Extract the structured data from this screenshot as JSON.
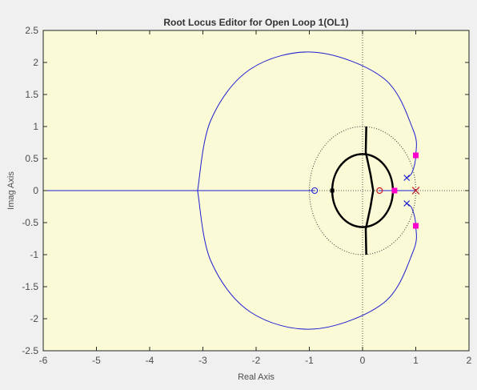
{
  "chart_data": {
    "type": "root-locus",
    "title": "Root Locus Editor for Open Loop 1(OL1)",
    "xlabel": "Real Axis",
    "ylabel": "Imag Axis",
    "xlim": [
      -6,
      2
    ],
    "ylim": [
      -2.5,
      2.5
    ],
    "xticks": [
      -6,
      -5,
      -4,
      -3,
      -2,
      -1,
      0,
      1,
      2
    ],
    "yticks": [
      -2.5,
      -2,
      -1.5,
      -1,
      -0.5,
      0,
      0.5,
      1,
      1.5,
      2,
      2.5
    ],
    "grid": false,
    "background_color": "#fafad7",
    "colors": {
      "locus": "#1f1fd0",
      "poles_zeros": "#1f1fd0",
      "closed_loop_poles": "#ff00cc",
      "compensator": "#d02020",
      "constraint": "#000000"
    },
    "open_loop_poles": [
      [
        0.83,
        0.2
      ],
      [
        0.83,
        -0.2
      ],
      [
        1.0,
        0.0
      ]
    ],
    "open_loop_zeros": [
      [
        -0.9,
        0.0
      ]
    ],
    "closed_loop_poles": [
      [
        1.0,
        0.55
      ],
      [
        1.0,
        -0.55
      ],
      [
        0.6,
        0.0
      ]
    ],
    "compensator_pole": [
      1.0,
      0.0
    ],
    "compensator_zero": [
      0.32,
      0.0
    ],
    "locus_branches": [
      [
        [
          1.0,
          0.0
        ],
        [
          0.3,
          0.0
        ]
      ],
      [
        [
          -6.0,
          0.0
        ],
        [
          -0.9,
          0.0
        ]
      ],
      [
        [
          0.83,
          0.2
        ],
        [
          0.93,
          0.28
        ],
        [
          1.0,
          0.55
        ],
        [
          0.95,
          0.95
        ],
        [
          0.4,
          1.75
        ],
        [
          -0.9,
          2.16
        ],
        [
          -2.1,
          1.9
        ],
        [
          -2.85,
          1.1
        ],
        [
          -3.1,
          0.0
        ]
      ],
      [
        [
          0.83,
          -0.2
        ],
        [
          0.93,
          -0.28
        ],
        [
          1.0,
          -0.55
        ],
        [
          0.95,
          -0.95
        ],
        [
          0.4,
          -1.75
        ],
        [
          -0.9,
          -2.16
        ],
        [
          -2.1,
          -1.9
        ],
        [
          -2.85,
          -1.1
        ],
        [
          -3.1,
          0.0
        ]
      ]
    ],
    "unit_circle_radius": 1.0,
    "design_constraint_ellipse": {
      "center": [
        0.0,
        0.0
      ],
      "rx": 0.57,
      "ry": 0.57
    },
    "design_constraint_curve": [
      [
        0.07,
        1.0
      ],
      [
        0.06,
        0.6
      ],
      [
        0.15,
        0.25
      ],
      [
        0.2,
        0.0
      ],
      [
        0.15,
        -0.25
      ],
      [
        0.06,
        -0.6
      ],
      [
        0.07,
        -1.0
      ]
    ]
  }
}
